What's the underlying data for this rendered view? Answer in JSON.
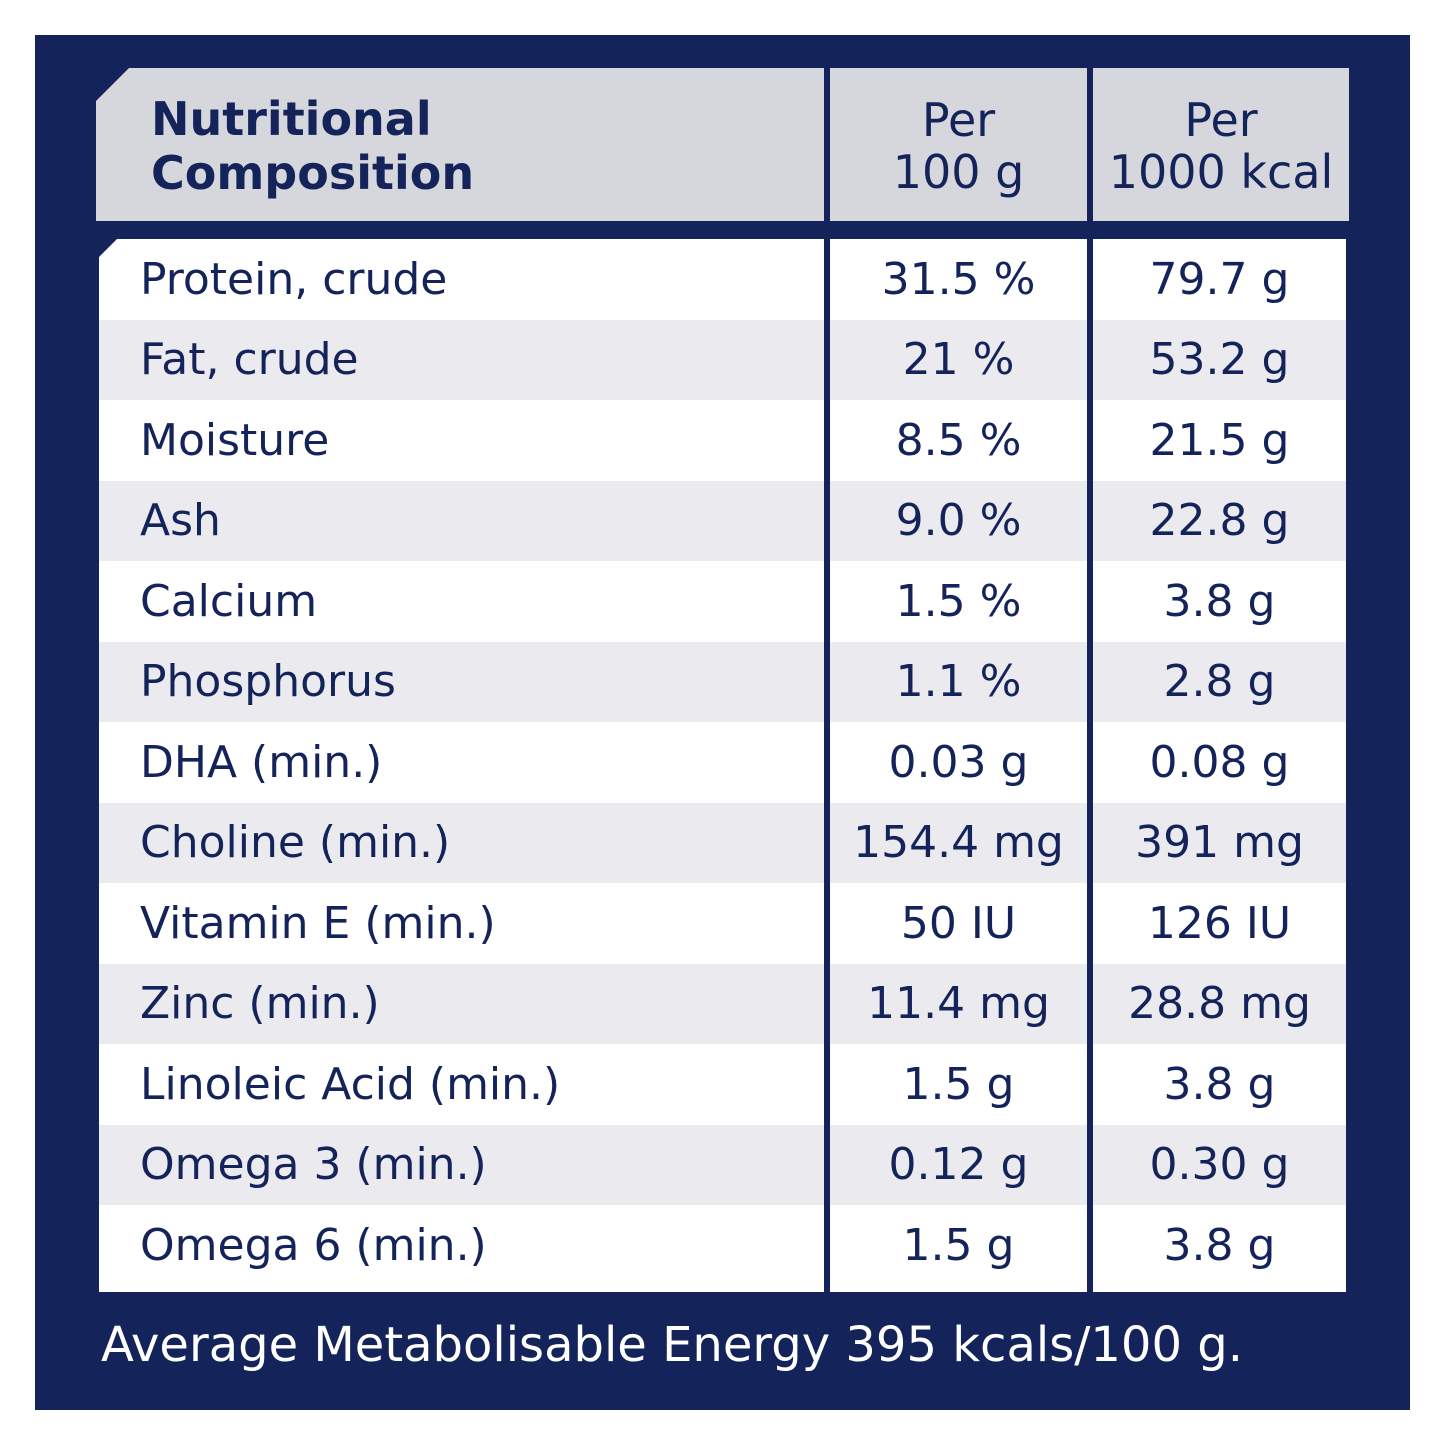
{
  "header": {
    "label_line1": "Nutritional",
    "label_line2": "Composition",
    "col1_line1": "Per",
    "col1_line2": "100 g",
    "col2_line1": "Per",
    "col2_line2": "1000 kcal"
  },
  "rows": [
    {
      "name": "Protein, crude",
      "per100g": "31.5 %",
      "per1000kcal": "79.7 g"
    },
    {
      "name": "Fat, crude",
      "per100g": "21 %",
      "per1000kcal": "53.2 g"
    },
    {
      "name": "Moisture",
      "per100g": "8.5 %",
      "per1000kcal": "21.5 g"
    },
    {
      "name": "Ash",
      "per100g": "9.0 %",
      "per1000kcal": "22.8 g"
    },
    {
      "name": "Calcium",
      "per100g": "1.5 %",
      "per1000kcal": "3.8 g"
    },
    {
      "name": "Phosphorus",
      "per100g": "1.1 %",
      "per1000kcal": "2.8 g"
    },
    {
      "name": "DHA (min.)",
      "per100g": "0.03 g",
      "per1000kcal": "0.08 g"
    },
    {
      "name": "Choline (min.)",
      "per100g": "154.4 mg",
      "per1000kcal": "391 mg"
    },
    {
      "name": "Vitamin E (min.)",
      "per100g": "50 IU",
      "per1000kcal": "126 IU"
    },
    {
      "name": "Zinc (min.)",
      "per100g": "11.4 mg",
      "per1000kcal": "28.8 mg"
    },
    {
      "name": "Linoleic Acid (min.)",
      "per100g": "1.5 g",
      "per1000kcal": "3.8 g"
    },
    {
      "name": "Omega 3 (min.)",
      "per100g": "0.12 g",
      "per1000kcal": "0.30 g"
    },
    {
      "name": "Omega 6 (min.)",
      "per100g": "1.5 g",
      "per1000kcal": "3.8 g"
    }
  ],
  "footer": {
    "text": "Average Metabolisable Energy 395 kcals/100 g."
  },
  "colors": {
    "navy": "#14235a",
    "header_gray": "#d6d7dc",
    "row_alt": "#ebebef"
  }
}
